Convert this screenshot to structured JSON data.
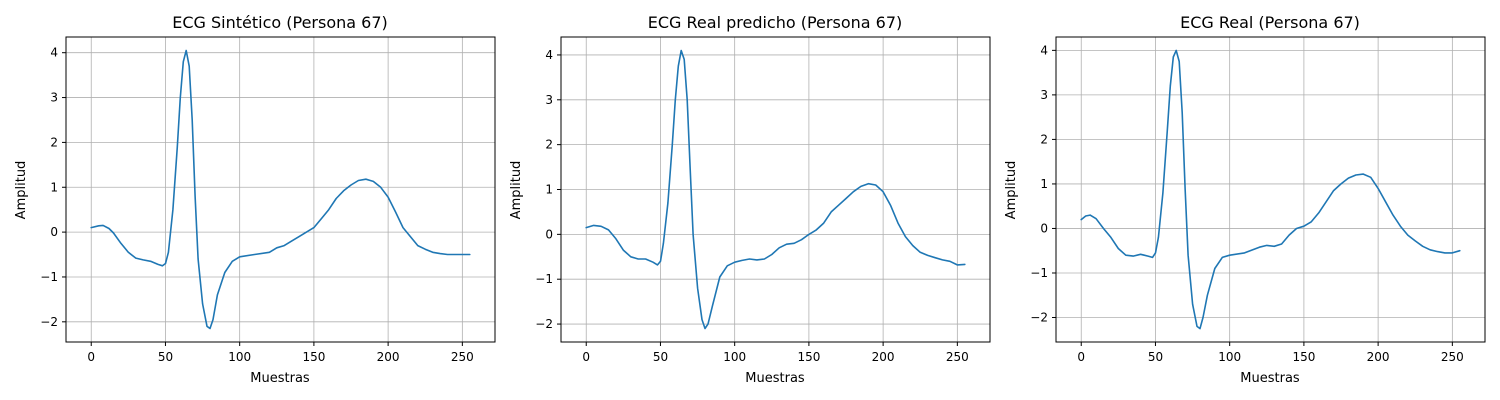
{
  "colors": {
    "line": "#1f77b4"
  },
  "chart_data": [
    {
      "type": "line",
      "title": "ECG Sintético (Persona 67)",
      "xlabel": "Muestras",
      "ylabel": "Amplitud",
      "xlim": [
        -17,
        272
      ],
      "ylim": [
        -2.45,
        4.35
      ],
      "xticks": [
        0,
        50,
        100,
        150,
        200,
        250
      ],
      "yticks": [
        -2,
        -1,
        0,
        1,
        2,
        3,
        4
      ],
      "grid": true,
      "series": [
        {
          "x": [
            0,
            5,
            8,
            12,
            15,
            20,
            25,
            30,
            35,
            40,
            45,
            48,
            50,
            52,
            55,
            58,
            60,
            62,
            64,
            66,
            68,
            70,
            72,
            75,
            78,
            80,
            82,
            85,
            90,
            95,
            100,
            110,
            120,
            125,
            130,
            135,
            140,
            145,
            150,
            155,
            160,
            165,
            170,
            175,
            180,
            185,
            188,
            190,
            195,
            200,
            205,
            210,
            215,
            220,
            225,
            230,
            235,
            240,
            245,
            250,
            255
          ],
          "y": [
            0.1,
            0.14,
            0.15,
            0.08,
            -0.02,
            -0.25,
            -0.45,
            -0.58,
            -0.62,
            -0.65,
            -0.72,
            -0.75,
            -0.7,
            -0.45,
            0.5,
            1.9,
            3.0,
            3.8,
            4.05,
            3.7,
            2.5,
            0.8,
            -0.6,
            -1.6,
            -2.1,
            -2.15,
            -1.95,
            -1.4,
            -0.9,
            -0.65,
            -0.55,
            -0.5,
            -0.45,
            -0.35,
            -0.3,
            -0.2,
            -0.1,
            0.0,
            0.1,
            0.3,
            0.5,
            0.75,
            0.92,
            1.05,
            1.15,
            1.18,
            1.15,
            1.13,
            1.0,
            0.78,
            0.45,
            0.1,
            -0.1,
            -0.3,
            -0.38,
            -0.45,
            -0.48,
            -0.5,
            -0.5,
            -0.5,
            -0.5
          ]
        }
      ]
    },
    {
      "type": "line",
      "title": "ECG Real predicho (Persona 67)",
      "xlabel": "Muestras",
      "ylabel": "Amplitud",
      "xlim": [
        -17,
        272
      ],
      "ylim": [
        -2.4,
        4.4
      ],
      "xticks": [
        0,
        50,
        100,
        150,
        200,
        250
      ],
      "yticks": [
        -2,
        -1,
        0,
        1,
        2,
        3,
        4
      ],
      "grid": true,
      "series": [
        {
          "x": [
            0,
            5,
            10,
            15,
            20,
            25,
            30,
            35,
            40,
            45,
            48,
            50,
            52,
            55,
            58,
            60,
            62,
            64,
            66,
            68,
            70,
            72,
            75,
            78,
            80,
            82,
            85,
            90,
            95,
            100,
            105,
            110,
            115,
            120,
            125,
            130,
            135,
            140,
            145,
            150,
            155,
            160,
            165,
            170,
            175,
            180,
            185,
            190,
            195,
            200,
            205,
            210,
            215,
            220,
            225,
            230,
            235,
            240,
            245,
            250,
            255
          ],
          "y": [
            0.15,
            0.2,
            0.18,
            0.1,
            -0.1,
            -0.35,
            -0.5,
            -0.55,
            -0.55,
            -0.62,
            -0.68,
            -0.6,
            -0.2,
            0.7,
            2.0,
            3.0,
            3.75,
            4.1,
            3.9,
            3.0,
            1.5,
            0.0,
            -1.2,
            -1.9,
            -2.1,
            -2.0,
            -1.6,
            -0.95,
            -0.7,
            -0.62,
            -0.58,
            -0.55,
            -0.57,
            -0.55,
            -0.45,
            -0.3,
            -0.22,
            -0.2,
            -0.12,
            0.0,
            0.1,
            0.25,
            0.5,
            0.65,
            0.8,
            0.95,
            1.07,
            1.13,
            1.1,
            0.95,
            0.65,
            0.25,
            -0.05,
            -0.25,
            -0.4,
            -0.47,
            -0.52,
            -0.57,
            -0.6,
            -0.68,
            -0.67
          ]
        }
      ]
    },
    {
      "type": "line",
      "title": "ECG Real (Persona 67)",
      "xlabel": "Muestras",
      "ylabel": "Amplitud",
      "xlim": [
        -17,
        272
      ],
      "ylim": [
        -2.55,
        4.3
      ],
      "xticks": [
        0,
        50,
        100,
        150,
        200,
        250
      ],
      "yticks": [
        -2,
        -1,
        0,
        1,
        2,
        3,
        4
      ],
      "grid": true,
      "series": [
        {
          "x": [
            0,
            3,
            6,
            10,
            15,
            20,
            25,
            30,
            35,
            40,
            45,
            48,
            50,
            52,
            55,
            58,
            60,
            62,
            64,
            66,
            68,
            70,
            72,
            75,
            78,
            80,
            82,
            85,
            90,
            95,
            100,
            110,
            120,
            125,
            130,
            135,
            140,
            145,
            150,
            155,
            160,
            165,
            170,
            175,
            180,
            185,
            190,
            195,
            200,
            205,
            210,
            215,
            220,
            225,
            230,
            235,
            240,
            245,
            250,
            255
          ],
          "y": [
            0.2,
            0.28,
            0.3,
            0.22,
            0.0,
            -0.2,
            -0.45,
            -0.6,
            -0.62,
            -0.58,
            -0.62,
            -0.65,
            -0.55,
            -0.2,
            0.8,
            2.2,
            3.2,
            3.85,
            4.0,
            3.75,
            2.6,
            0.9,
            -0.6,
            -1.7,
            -2.2,
            -2.25,
            -2.0,
            -1.5,
            -0.9,
            -0.65,
            -0.6,
            -0.55,
            -0.42,
            -0.38,
            -0.4,
            -0.35,
            -0.15,
            0.0,
            0.05,
            0.15,
            0.35,
            0.6,
            0.85,
            1.0,
            1.13,
            1.2,
            1.22,
            1.15,
            0.9,
            0.6,
            0.3,
            0.05,
            -0.15,
            -0.28,
            -0.4,
            -0.48,
            -0.52,
            -0.55,
            -0.55,
            -0.5
          ]
        }
      ]
    }
  ]
}
